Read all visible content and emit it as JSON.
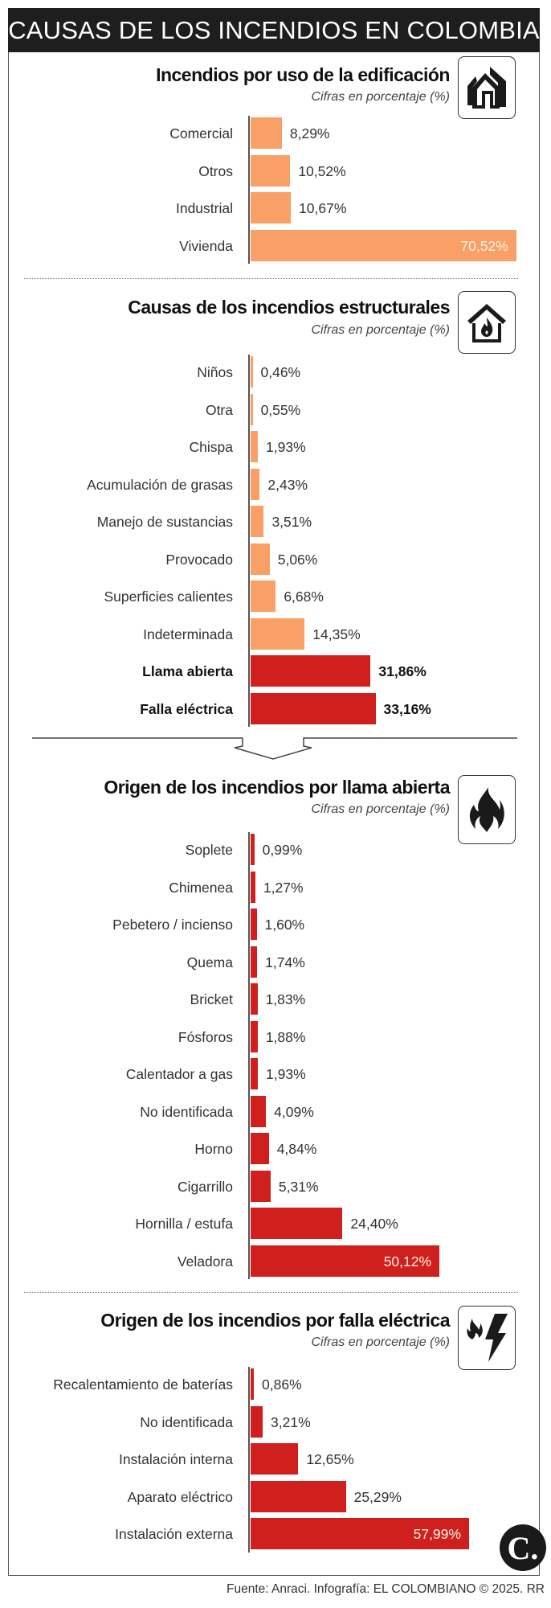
{
  "title": "CAUSAS DE LOS INCENDIOS EN COLOMBIA",
  "footer": "Fuente: Anraci. Infografía: EL COLOMBIANO © 2025. RR",
  "logo_text": "C.",
  "colors": {
    "orange": "#F9A066",
    "red": "#D0201E"
  },
  "chart_data": [
    {
      "type": "bar",
      "title": "Incendios por uso de la edificación",
      "subtitle": "Cifras en porcentaje (%)",
      "icon": "houses-icon",
      "color": "#F9A066",
      "categories": [
        "Comercial",
        "Otros",
        "Industrial",
        "Vivienda"
      ],
      "values": [
        8.29,
        10.52,
        10.67,
        70.52
      ],
      "value_labels": [
        "8,29%",
        "10,52%",
        "10,67%",
        "70,52%"
      ],
      "emphasis": [
        false,
        false,
        false,
        false
      ],
      "orientation": "horizontal"
    },
    {
      "type": "bar",
      "title": "Causas de los incendios estructurales",
      "subtitle": "Cifras en porcentaje (%)",
      "icon": "house-fire-icon",
      "color": "#F9A066",
      "highlight_color": "#D0201E",
      "categories": [
        "Niños",
        "Otra",
        "Chispa",
        "Acumulación de grasas",
        "Manejo de sustancias",
        "Provocado",
        "Superficies calientes",
        "Indeterminada",
        "Llama abierta",
        "Falla eléctrica"
      ],
      "values": [
        0.46,
        0.55,
        1.93,
        2.43,
        3.51,
        5.06,
        6.68,
        14.35,
        31.86,
        33.16
      ],
      "value_labels": [
        "0,46%",
        "0,55%",
        "1,93%",
        "2,43%",
        "3,51%",
        "5,06%",
        "6,68%",
        "14,35%",
        "31,86%",
        "33,16%"
      ],
      "emphasis": [
        false,
        false,
        false,
        false,
        false,
        false,
        false,
        false,
        true,
        true
      ],
      "orientation": "horizontal"
    },
    {
      "type": "bar",
      "title": "Origen de los incendios por llama abierta",
      "subtitle": "Cifras en porcentaje (%)",
      "icon": "flame-icon",
      "color": "#D0201E",
      "categories": [
        "Soplete",
        "Chimenea",
        "Pebetero / incienso",
        "Quema",
        "Bricket",
        "Fósforos",
        "Calentador a gas",
        "No identificada",
        "Horno",
        "Cigarrillo",
        "Hornilla / estufa",
        "Veladora"
      ],
      "values": [
        0.99,
        1.27,
        1.6,
        1.74,
        1.83,
        1.88,
        1.93,
        4.09,
        4.84,
        5.31,
        24.4,
        50.12
      ],
      "value_labels": [
        "0,99%",
        "1,27%",
        "1,60%",
        "1,74%",
        "1,83%",
        "1,88%",
        "1,93%",
        "4,09%",
        "4,84%",
        "5,31%",
        "24,40%",
        "50,12%"
      ],
      "emphasis": [
        false,
        false,
        false,
        false,
        false,
        false,
        false,
        false,
        false,
        false,
        false,
        false
      ],
      "orientation": "horizontal"
    },
    {
      "type": "bar",
      "title": "Origen de los incendios por falla eléctrica",
      "subtitle": "Cifras en porcentaje (%)",
      "icon": "fire-lightning-icon",
      "color": "#D0201E",
      "categories": [
        "Recalentamiento de baterías",
        "No identificada",
        "Instalación interna",
        "Aparato eléctrico",
        "Instalación externa"
      ],
      "values": [
        0.86,
        3.21,
        12.65,
        25.29,
        57.99
      ],
      "value_labels": [
        "0,86%",
        "3,21%",
        "12,65%",
        "25,29%",
        "57,99%"
      ],
      "emphasis": [
        false,
        false,
        false,
        false,
        false
      ],
      "orientation": "horizontal"
    }
  ]
}
